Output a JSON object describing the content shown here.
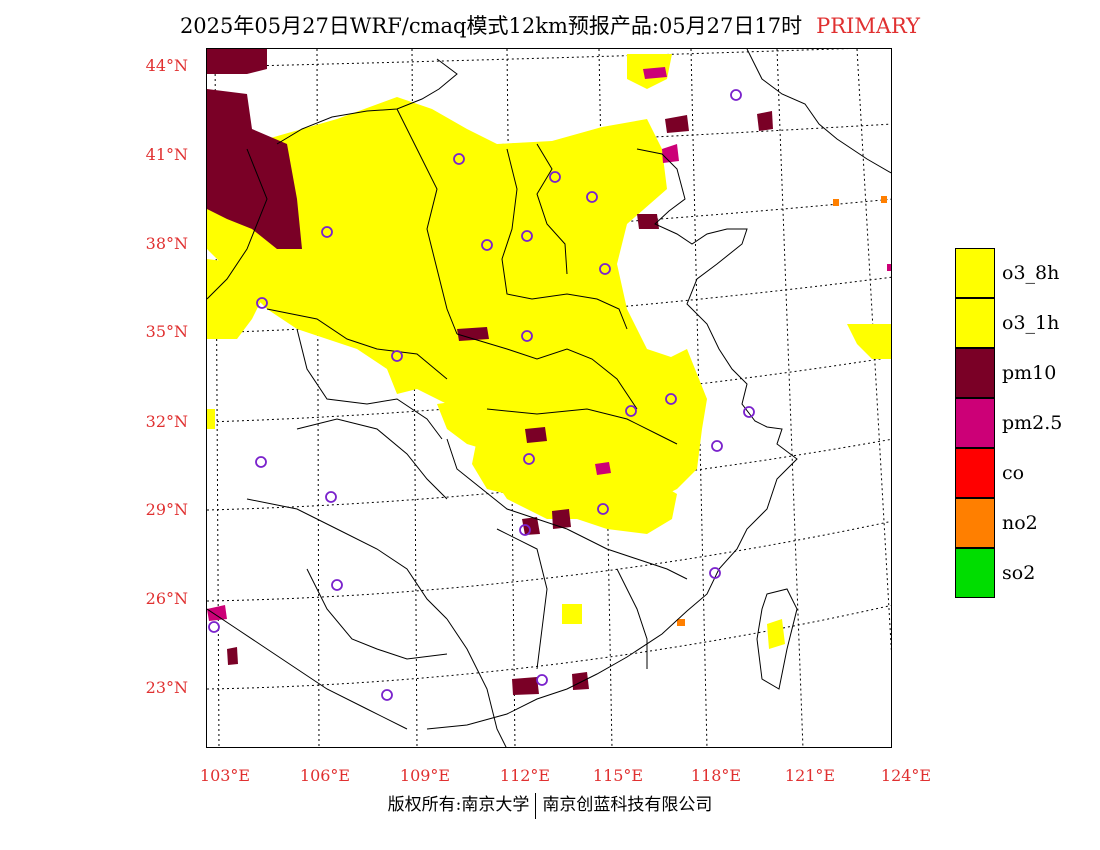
{
  "header": {
    "title": "2025年05月27日WRF/cmaq模式12km预报产品:05月27日17时",
    "tag": "PRIMARY"
  },
  "axes": {
    "lat_labels": [
      "44°N",
      "41°N",
      "38°N",
      "35°N",
      "32°N",
      "29°N",
      "26°N",
      "23°N"
    ],
    "lon_labels": [
      "103°E",
      "106°E",
      "109°E",
      "112°E",
      "115°E",
      "118°E",
      "121°E",
      "124°E"
    ]
  },
  "legend": [
    {
      "label": "o3_8h",
      "color": "#ffff00"
    },
    {
      "label": "o3_1h",
      "color": "#ffff00"
    },
    {
      "label": "pm10",
      "color": "#7a0026"
    },
    {
      "label": "pm2.5",
      "color": "#cc0077"
    },
    {
      "label": "co",
      "color": "#ff0000"
    },
    {
      "label": "no2",
      "color": "#ff7f00"
    },
    {
      "label": "so2",
      "color": "#00dd00"
    }
  ],
  "footer": {
    "left": "版权所有:南京大学",
    "right": "南京创蓝科技有限公司"
  }
}
